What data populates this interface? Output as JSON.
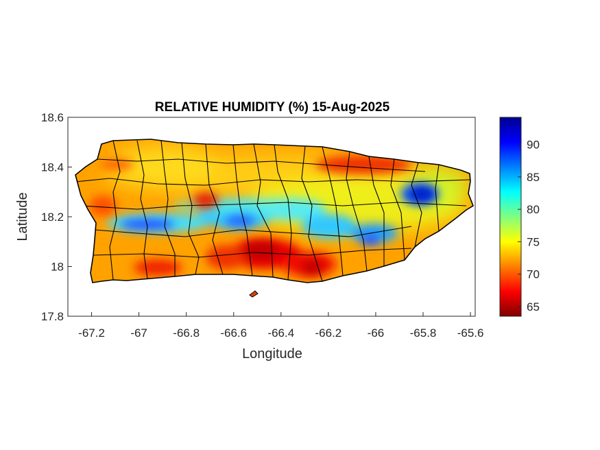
{
  "map": {
    "title": "RELATIVE HUMIDITY (%) 15-Aug-2025",
    "xlabel": "Longitude",
    "ylabel": "Latitude",
    "x_range": [
      -67.3,
      -65.58
    ],
    "y_range": [
      17.8,
      18.6
    ],
    "x_ticks": [
      "-67.2",
      "-67",
      "-66.8",
      "-66.6",
      "-66.4",
      "-66.2",
      "-66",
      "-65.8",
      "-65.6"
    ],
    "x_tick_values": [
      -67.2,
      -67.0,
      -66.8,
      -66.6,
      -66.4,
      -66.2,
      -66.0,
      -65.8,
      -65.6
    ],
    "y_ticks": [
      "18.6",
      "18.4",
      "18.2",
      "18"
    ],
    "y_tick_values": [
      18.6,
      18.4,
      18.2,
      18.0
    ],
    "y_bottom_tick": "17.8",
    "region": "Puerto Rico",
    "colormap": "jet",
    "colorbar": {
      "ticks": [
        "90",
        "85",
        "80",
        "75",
        "70",
        "65"
      ],
      "tick_values": [
        90,
        85,
        80,
        75,
        70,
        65
      ],
      "range": [
        63.5,
        94.2
      ]
    },
    "humidity_features": [
      {
        "lon": -66.92,
        "lat": 18.16,
        "rh": 85
      },
      {
        "lon": -66.6,
        "lat": 18.18,
        "rh": 86
      },
      {
        "lon": -66.42,
        "lat": 18.22,
        "rh": 84
      },
      {
        "lon": -66.15,
        "lat": 18.17,
        "rh": 84
      },
      {
        "lon": -66.05,
        "lat": 18.11,
        "rh": 85
      },
      {
        "lon": -65.8,
        "lat": 18.28,
        "rh": 91
      },
      {
        "lon": -66.5,
        "lat": 18.02,
        "rh": 64
      },
      {
        "lon": -66.3,
        "lat": 17.99,
        "rh": 65
      },
      {
        "lon": -66.15,
        "lat": 18.4,
        "rh": 67
      },
      {
        "lon": -66.75,
        "lat": 18.26,
        "rh": 68
      },
      {
        "lon": -66.95,
        "lat": 17.99,
        "rh": 68
      }
    ],
    "colors": {
      "frame": "#262626",
      "border_lines": "#000000",
      "cmap_top": "#00008f",
      "cmap_bottom": "#800000"
    }
  }
}
